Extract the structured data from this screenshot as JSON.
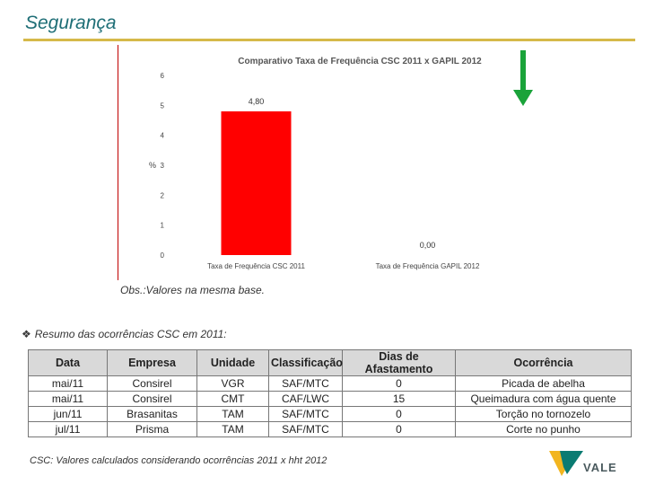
{
  "header": {
    "title": "Segurança"
  },
  "chart_data": {
    "type": "bar",
    "title": "Comparativo Taxa de Frequência CSC 2011 x GAPIL 2012",
    "categories": [
      "Taxa de Frequência CSC 2011",
      "Taxa de Frequência GAPIL 2012"
    ],
    "values": [
      4.8,
      0.0
    ],
    "data_labels": [
      "4,80",
      "0,00"
    ],
    "ylabel": "%",
    "ylim": [
      0,
      6
    ],
    "yticks": [
      "0",
      "1",
      "2",
      "3",
      "4",
      "5",
      "6"
    ],
    "grid": false,
    "legend": "none",
    "bar_color": "#ff0000"
  },
  "indicator": {
    "icon": "down-arrow-icon",
    "color": "#1aa33a"
  },
  "obs": "Obs.:Valores na mesma base.",
  "summary": {
    "heading": "Resumo das ocorrências CSC em 2011:",
    "bullet": "❖"
  },
  "table": {
    "headers": [
      "Data",
      "Empresa",
      "Unidade",
      "Classificação",
      "Dias de Afastamento",
      "Ocorrência"
    ],
    "rows": [
      [
        "mai/11",
        "Consirel",
        "VGR",
        "SAF/MTC",
        "0",
        "Picada de abelha"
      ],
      [
        "mai/11",
        "Consirel",
        "CMT",
        "CAF/LWC",
        "15",
        "Queimadura com água quente"
      ],
      [
        "jun/11",
        "Brasanitas",
        "TAM",
        "SAF/MTC",
        "0",
        "Torção no tornozelo"
      ],
      [
        "jul/11",
        "Prisma",
        "TAM",
        "SAF/MTC",
        "0",
        "Corte no punho"
      ]
    ]
  },
  "footer": {
    "note": "CSC: Valores calculados considerando ocorrências 2011 x hht 2012"
  },
  "brand": {
    "name": "VALE",
    "colors": [
      "#f2b51f",
      "#0a7b72"
    ]
  }
}
